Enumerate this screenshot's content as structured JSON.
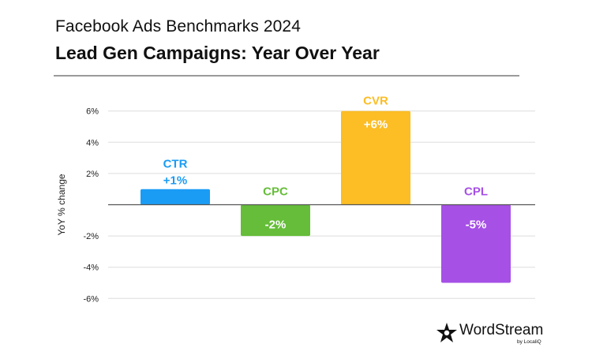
{
  "header": {
    "title": "Facebook Ads Benchmarks 2024",
    "subtitle": "Lead Gen Campaigns: Year Over Year"
  },
  "brand": {
    "name": "WordStream",
    "tagline": "by LocaliQ",
    "icon": "wordstream-logo-icon"
  },
  "chart_data": {
    "type": "bar",
    "title": "Lead Gen Campaigns: Year Over Year",
    "ylabel": "YoY % change",
    "xlabel": "",
    "ylim": [
      -6,
      6
    ],
    "yticks": [
      6,
      4,
      2,
      -2,
      -4,
      -6
    ],
    "ytick_labels": [
      "6%",
      "4%",
      "2%",
      "-2%",
      "-4%",
      "-6%"
    ],
    "grid": true,
    "categories": [
      "CTR",
      "CPC",
      "CVR",
      "CPL"
    ],
    "values": [
      1,
      -2,
      6,
      -5
    ],
    "data_labels": [
      "+1%",
      "-2%",
      "+6%",
      "-5%"
    ],
    "colors": [
      "#1a9cf5",
      "#65bd39",
      "#fcbd25",
      "#a650e6"
    ]
  }
}
